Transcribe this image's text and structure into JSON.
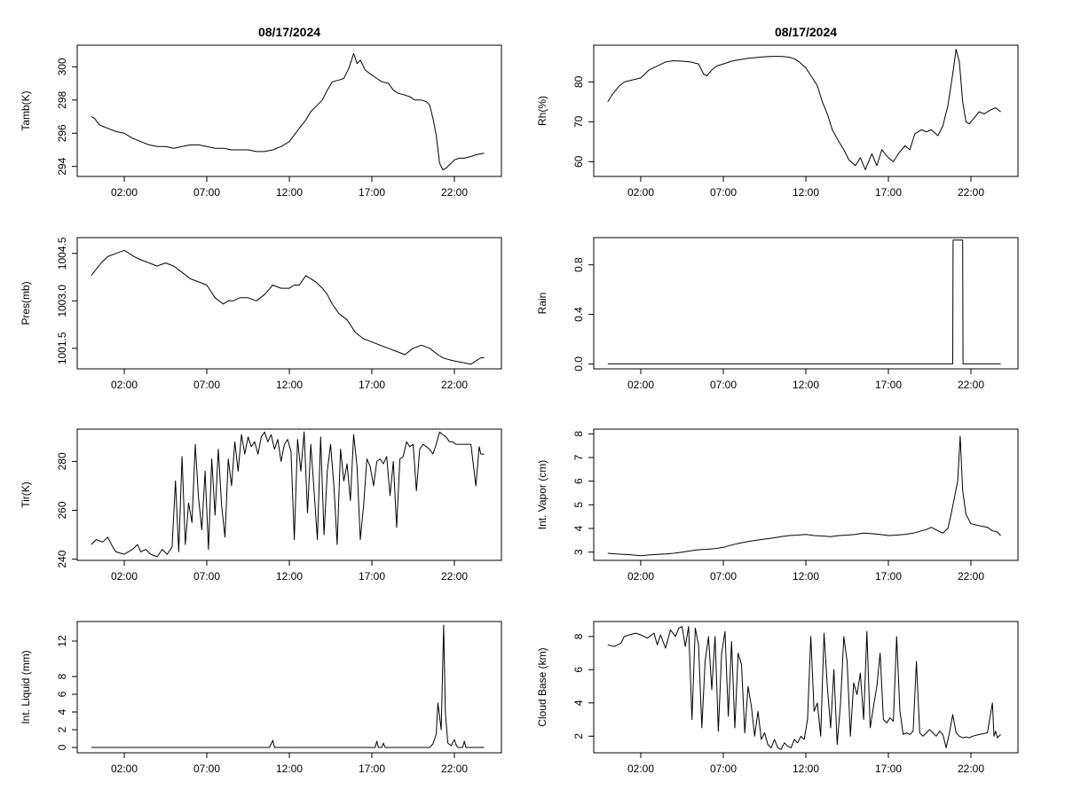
{
  "figure": {
    "date_title": "08/17/2024"
  },
  "chart_data": [
    {
      "id": "tamb",
      "type": "line",
      "title": "08/17/2024",
      "xlabel": "",
      "ylabel": "Tamb(K)",
      "x_ticks": [
        "02:00",
        "07:00",
        "12:00",
        "17:00",
        "22:00"
      ],
      "y_ticks": [
        "294",
        "296",
        "298",
        "300"
      ],
      "ylim": [
        293.4,
        301.3
      ],
      "x": [
        0,
        0.2,
        0.5,
        1,
        1.5,
        2,
        2.5,
        3,
        3.5,
        4,
        4.5,
        5,
        5.5,
        6,
        6.5,
        7,
        7.5,
        8,
        8.5,
        9,
        9.5,
        10,
        10.5,
        11,
        11.5,
        12,
        12.3,
        12.6,
        13,
        13.3,
        13.6,
        14,
        14.3,
        14.6,
        15,
        15.3,
        15.6,
        15.9,
        16.1,
        16.3,
        16.6,
        17,
        17.3,
        17.6,
        18,
        18.3,
        18.6,
        19,
        19.3,
        19.6,
        20,
        20.3,
        20.5,
        20.7,
        20.9,
        21.1,
        21.3,
        21.5,
        21.8,
        22,
        22.3,
        22.6,
        23,
        23.3,
        23.8
      ],
      "values": [
        297.0,
        296.9,
        296.5,
        296.3,
        296.1,
        296.0,
        295.7,
        295.5,
        295.3,
        295.2,
        295.2,
        295.1,
        295.2,
        295.3,
        295.3,
        295.2,
        295.1,
        295.1,
        295.0,
        295.0,
        295.0,
        294.9,
        294.9,
        295.0,
        295.2,
        295.5,
        295.9,
        296.3,
        296.8,
        297.3,
        297.6,
        298.0,
        298.6,
        299.1,
        299.2,
        299.3,
        299.9,
        300.8,
        300.2,
        300.4,
        299.8,
        299.5,
        299.3,
        299.1,
        299.0,
        298.6,
        298.4,
        298.3,
        298.2,
        298.0,
        298.0,
        297.9,
        297.7,
        296.9,
        295.9,
        294.2,
        293.8,
        293.9,
        294.2,
        294.4,
        294.5,
        294.5,
        294.6,
        294.7,
        294.8
      ]
    },
    {
      "id": "rh",
      "type": "line",
      "title": "08/17/2024",
      "xlabel": "",
      "ylabel": "Rh(%)",
      "x_ticks": [
        "02:00",
        "07:00",
        "12:00",
        "17:00",
        "22:00"
      ],
      "y_ticks": [
        "60",
        "70",
        "80"
      ],
      "ylim": [
        56.3,
        89.2
      ],
      "x": [
        0,
        0.3,
        0.7,
        1,
        1.5,
        2,
        2.5,
        3,
        3.5,
        4,
        4.5,
        5,
        5.5,
        5.8,
        6,
        6.3,
        6.6,
        7,
        7.5,
        8,
        8.5,
        9,
        9.5,
        10,
        10.5,
        11,
        11.3,
        11.6,
        12,
        12.4,
        12.7,
        13,
        13.3,
        13.6,
        14,
        14.3,
        14.6,
        15,
        15.3,
        15.6,
        16,
        16.3,
        16.6,
        17,
        17.3,
        17.6,
        18,
        18.3,
        18.6,
        19,
        19.3,
        19.6,
        20,
        20.3,
        20.6,
        20.9,
        21.1,
        21.3,
        21.5,
        21.7,
        21.9,
        22.2,
        22.5,
        22.8,
        23.2,
        23.5,
        23.8
      ],
      "values": [
        75,
        77,
        79,
        80,
        80.5,
        81,
        83,
        84,
        85,
        85.3,
        85.2,
        85.0,
        84.5,
        82,
        81.5,
        83,
        84,
        84.5,
        85.2,
        85.6,
        85.9,
        86.1,
        86.3,
        86.4,
        86.4,
        86.2,
        85.8,
        85.0,
        83.5,
        81,
        79,
        75,
        72,
        68,
        65,
        63,
        60.5,
        59,
        61,
        58,
        62,
        59,
        63,
        61,
        60,
        62,
        64,
        63,
        67,
        68,
        67.5,
        68,
        66.5,
        69,
        74,
        82,
        88.2,
        85,
        75,
        70,
        69.5,
        71,
        72.5,
        72,
        73,
        73.5,
        72.5
      ]
    },
    {
      "id": "pres",
      "type": "line",
      "title": "",
      "xlabel": "",
      "ylabel": "Pres(mb)",
      "x_ticks": [
        "02:00",
        "07:00",
        "12:00",
        "17:00",
        "22:00"
      ],
      "y_ticks": [
        "1001.5",
        "1003.0",
        "1004.5"
      ],
      "ylim": [
        1000.85,
        1005.0
      ],
      "x": [
        0,
        0.3,
        0.6,
        1,
        1.5,
        2,
        2.3,
        2.6,
        3,
        3.5,
        4,
        4.5,
        5,
        5.5,
        6,
        6.5,
        7,
        7.5,
        8,
        8.3,
        8.6,
        9,
        9.5,
        10,
        10.5,
        11,
        11.5,
        12,
        12.3,
        12.6,
        13,
        13.3,
        13.6,
        14,
        14.3,
        14.6,
        15,
        15.5,
        16,
        16.5,
        17,
        17.5,
        18,
        18.5,
        19,
        19.5,
        20,
        20.5,
        21,
        21.3,
        21.6,
        22,
        22.5,
        23,
        23.3,
        23.6,
        23.8
      ],
      "values": [
        1003.8,
        1004.0,
        1004.2,
        1004.4,
        1004.5,
        1004.6,
        1004.5,
        1004.4,
        1004.3,
        1004.2,
        1004.1,
        1004.2,
        1004.1,
        1003.9,
        1003.7,
        1003.6,
        1003.5,
        1003.1,
        1002.9,
        1003.0,
        1003.0,
        1003.1,
        1003.1,
        1003.0,
        1003.2,
        1003.5,
        1003.4,
        1003.4,
        1003.5,
        1003.5,
        1003.8,
        1003.7,
        1003.6,
        1003.4,
        1003.2,
        1002.9,
        1002.6,
        1002.4,
        1002.0,
        1001.8,
        1001.7,
        1001.6,
        1001.5,
        1001.4,
        1001.3,
        1001.5,
        1001.6,
        1001.5,
        1001.3,
        1001.2,
        1001.15,
        1001.1,
        1001.05,
        1001.0,
        1001.1,
        1001.2,
        1001.2
      ]
    },
    {
      "id": "rain",
      "type": "line",
      "title": "",
      "xlabel": "",
      "ylabel": "Rain",
      "x_ticks": [
        "02:00",
        "07:00",
        "12:00",
        "17:00",
        "22:00"
      ],
      "y_ticks": [
        "0.0",
        "0.4",
        "0.8"
      ],
      "ylim": [
        -0.04,
        1.02
      ],
      "x": [
        0,
        20.9,
        20.92,
        21.5,
        21.52,
        23.8
      ],
      "values": [
        0,
        0,
        1,
        1,
        0,
        0
      ]
    },
    {
      "id": "tir",
      "type": "line",
      "title": "",
      "xlabel": "",
      "ylabel": "Tir(K)",
      "x_ticks": [
        "02:00",
        "07:00",
        "12:00",
        "17:00",
        "22:00"
      ],
      "y_ticks": [
        "240",
        "260",
        "280"
      ],
      "ylim": [
        239.5,
        293.2
      ],
      "x": [
        0,
        0.3,
        0.7,
        1,
        1.3,
        1.5,
        2,
        2.5,
        2.8,
        3,
        3.3,
        3.6,
        4,
        4.3,
        4.6,
        4.9,
        5.1,
        5.3,
        5.5,
        5.7,
        5.9,
        6.1,
        6.3,
        6.5,
        6.7,
        6.9,
        7.1,
        7.3,
        7.5,
        7.7,
        7.9,
        8.1,
        8.3,
        8.5,
        8.7,
        8.9,
        9.1,
        9.3,
        9.5,
        9.7,
        9.9,
        10.1,
        10.3,
        10.5,
        10.7,
        10.9,
        11.1,
        11.3,
        11.5,
        11.7,
        11.9,
        12.1,
        12.3,
        12.5,
        12.7,
        12.9,
        13.1,
        13.3,
        13.5,
        13.7,
        13.9,
        14.1,
        14.3,
        14.5,
        14.7,
        14.9,
        15.1,
        15.3,
        15.5,
        15.7,
        15.9,
        16.1,
        16.3,
        16.5,
        16.7,
        16.9,
        17.1,
        17.3,
        17.5,
        17.7,
        17.9,
        18.1,
        18.3,
        18.5,
        18.7,
        18.9,
        19.1,
        19.3,
        19.5,
        19.7,
        19.9,
        20.1,
        20.3,
        20.5,
        20.7,
        20.9,
        21.1,
        21.3,
        21.5,
        21.7,
        21.9,
        22.1,
        22.5,
        23,
        23.3,
        23.5,
        23.6,
        23.8
      ],
      "values": [
        246,
        248,
        247,
        249,
        245,
        243,
        242,
        244,
        246,
        243,
        244,
        242,
        241,
        244,
        242,
        245,
        272,
        243,
        282,
        246,
        263,
        255,
        287,
        265,
        252,
        276,
        244,
        281,
        258,
        285,
        262,
        249,
        281,
        270,
        288,
        276,
        291,
        283,
        290,
        286,
        288,
        283,
        290,
        292,
        288,
        291,
        285,
        289,
        280,
        287,
        289,
        284,
        248,
        289,
        276,
        292,
        259,
        287,
        268,
        248,
        290,
        250,
        276,
        287,
        270,
        246,
        285,
        272,
        279,
        264,
        291,
        278,
        248,
        262,
        281,
        278,
        270,
        280,
        281,
        279,
        282,
        266,
        280,
        253,
        281,
        282,
        288,
        286,
        287,
        268,
        285,
        287,
        286,
        285,
        283,
        287,
        292,
        291,
        290,
        288,
        288,
        287,
        287,
        287,
        270,
        286,
        283,
        283
      ]
    },
    {
      "id": "vapor",
      "type": "line",
      "title": "",
      "xlabel": "",
      "ylabel": "Int. Vapor (cm)",
      "x_ticks": [
        "02:00",
        "07:00",
        "12:00",
        "17:00",
        "22:00"
      ],
      "y_ticks": [
        "3",
        "4",
        "5",
        "6",
        "7",
        "8"
      ],
      "ylim": [
        2.65,
        8.2
      ],
      "x": [
        0,
        0.5,
        1,
        1.5,
        2,
        2.5,
        3,
        3.5,
        4,
        4.5,
        5,
        5.5,
        6,
        6.5,
        7,
        7.5,
        8,
        8.5,
        9,
        9.5,
        10,
        10.5,
        11,
        11.5,
        12,
        12.5,
        13,
        13.5,
        14,
        14.5,
        15,
        15.5,
        16,
        16.5,
        17,
        17.5,
        18,
        18.5,
        19,
        19.3,
        19.6,
        20,
        20.3,
        20.6,
        20.8,
        21.0,
        21.2,
        21.35,
        21.5,
        21.7,
        22,
        22.3,
        22.6,
        23,
        23.3,
        23.6,
        23.8
      ],
      "values": [
        2.95,
        2.92,
        2.9,
        2.88,
        2.85,
        2.88,
        2.9,
        2.92,
        2.95,
        3.0,
        3.05,
        3.1,
        3.12,
        3.15,
        3.2,
        3.3,
        3.38,
        3.45,
        3.5,
        3.55,
        3.6,
        3.65,
        3.7,
        3.72,
        3.75,
        3.7,
        3.68,
        3.65,
        3.7,
        3.72,
        3.75,
        3.8,
        3.78,
        3.75,
        3.7,
        3.72,
        3.75,
        3.8,
        3.9,
        3.95,
        4.05,
        3.9,
        3.8,
        4.0,
        4.6,
        5.3,
        6.0,
        7.9,
        5.6,
        4.6,
        4.2,
        4.15,
        4.1,
        4.05,
        3.9,
        3.85,
        3.7
      ]
    },
    {
      "id": "liquid",
      "type": "line",
      "title": "",
      "xlabel": "",
      "ylabel": "Int. Liquid (mm)",
      "x_ticks": [
        "02:00",
        "07:00",
        "12:00",
        "17:00",
        "22:00"
      ],
      "y_ticks": [
        "0",
        "2",
        "4",
        "6",
        "8",
        "12"
      ],
      "ylim": [
        -0.6,
        14.2
      ],
      "x": [
        0,
        10.8,
        10.9,
        11.0,
        11.1,
        17.2,
        17.3,
        17.4,
        17.6,
        17.7,
        17.8,
        20.5,
        20.7,
        20.9,
        21.0,
        21.1,
        21.2,
        21.35,
        21.45,
        21.6,
        21.8,
        22.0,
        22.1,
        22.2,
        22.5,
        22.6,
        22.7,
        23.8
      ],
      "values": [
        0,
        0,
        0.4,
        0.8,
        0,
        0,
        0.7,
        0,
        0,
        0.5,
        0,
        0,
        0.4,
        1.5,
        5.0,
        3.5,
        2.0,
        13.8,
        4.0,
        0.5,
        0.2,
        0.9,
        0.3,
        0,
        0,
        0.7,
        0,
        0
      ]
    },
    {
      "id": "cloudbase",
      "type": "line",
      "title": "",
      "xlabel": "",
      "ylabel": "Cloud Base (km)",
      "x_ticks": [
        "02:00",
        "07:00",
        "12:00",
        "17:00",
        "22:00"
      ],
      "y_ticks": [
        "2",
        "4",
        "6",
        "8"
      ],
      "ylim": [
        1.0,
        8.9
      ],
      "x": [
        0,
        0.4,
        0.8,
        1.0,
        1.3,
        1.7,
        2.0,
        2.4,
        2.8,
        3.0,
        3.2,
        3.5,
        3.8,
        4.1,
        4.3,
        4.5,
        4.7,
        4.9,
        5.1,
        5.3,
        5.5,
        5.7,
        5.9,
        6.1,
        6.3,
        6.5,
        6.7,
        6.9,
        7.1,
        7.3,
        7.5,
        7.7,
        7.9,
        8.1,
        8.3,
        8.5,
        8.7,
        8.9,
        9.1,
        9.3,
        9.5,
        9.7,
        9.9,
        10.1,
        10.3,
        10.5,
        10.7,
        10.9,
        11.1,
        11.3,
        11.5,
        11.7,
        11.9,
        12.1,
        12.3,
        12.5,
        12.7,
        12.9,
        13.1,
        13.3,
        13.5,
        13.7,
        13.9,
        14.1,
        14.3,
        14.5,
        14.7,
        14.9,
        15.1,
        15.3,
        15.5,
        15.7,
        15.9,
        16.1,
        16.3,
        16.5,
        16.7,
        16.9,
        17.1,
        17.3,
        17.5,
        17.7,
        17.9,
        18.1,
        18.3,
        18.5,
        18.7,
        18.9,
        19.1,
        19.3,
        19.5,
        19.7,
        19.9,
        20.1,
        20.3,
        20.5,
        20.7,
        20.9,
        21.1,
        21.3,
        21.5,
        21.7,
        21.9,
        22.1,
        22.5,
        23.0,
        23.3,
        23.4,
        23.5,
        23.6,
        23.8
      ],
      "values": [
        7.5,
        7.4,
        7.6,
        8.0,
        8.1,
        8.2,
        8.1,
        7.9,
        8.2,
        7.5,
        8.1,
        7.3,
        8.4,
        8.0,
        8.5,
        8.6,
        7.4,
        8.6,
        3.0,
        8.5,
        7.5,
        2.5,
        6.5,
        8.0,
        4.8,
        8.0,
        2.3,
        7.0,
        8.3,
        3.2,
        7.7,
        2.5,
        7.0,
        6.3,
        2.2,
        5.0,
        3.8,
        2.0,
        3.5,
        1.8,
        2.2,
        1.5,
        1.3,
        1.8,
        1.3,
        1.2,
        1.6,
        1.4,
        1.3,
        1.8,
        1.6,
        2.0,
        1.8,
        3.0,
        8.0,
        3.5,
        4.0,
        2.0,
        8.2,
        5.0,
        2.5,
        6.0,
        1.5,
        4.0,
        8.0,
        6.5,
        2.0,
        5.2,
        4.5,
        5.8,
        3.0,
        8.3,
        2.5,
        3.8,
        5.0,
        7.0,
        3.0,
        2.8,
        3.1,
        2.9,
        8.0,
        3.5,
        2.1,
        2.2,
        2.1,
        2.3,
        6.5,
        2.2,
        2.0,
        2.2,
        2.4,
        2.2,
        2.0,
        2.3,
        2.1,
        1.3,
        2.2,
        3.3,
        2.2,
        2.0,
        1.9,
        1.95,
        1.9,
        2.0,
        2.1,
        2.2,
        4.0,
        2.0,
        2.3,
        1.9,
        2.1
      ]
    }
  ]
}
